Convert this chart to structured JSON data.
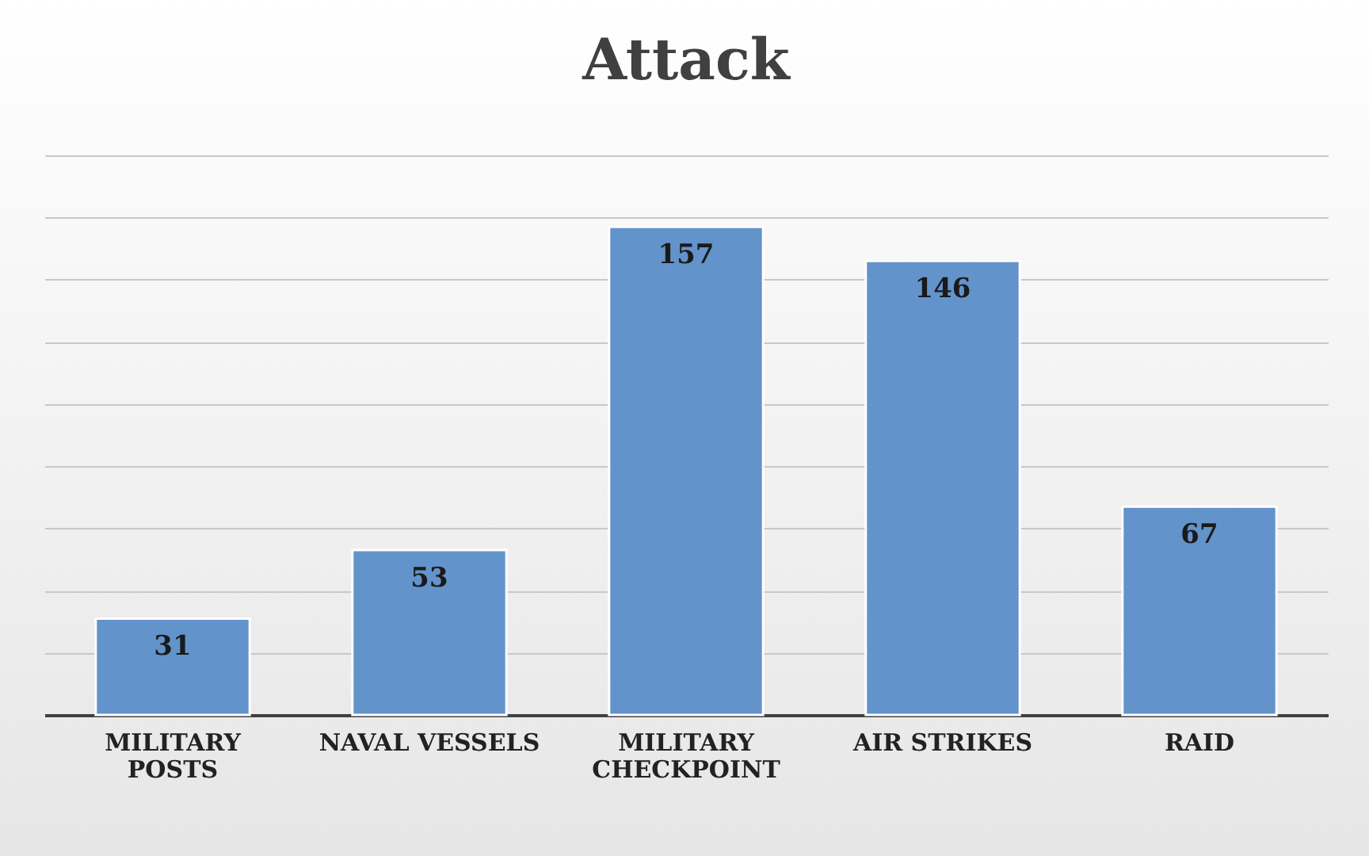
{
  "chart_data": {
    "type": "bar",
    "title": "Attack",
    "categories": [
      "MILITARY POSTS",
      "NAVAL VESSELS",
      "MILITARY CHECKPOINT",
      "AIR STRIKES",
      "RAID"
    ],
    "values": [
      31,
      53,
      157,
      146,
      67
    ],
    "color": "#6393cb",
    "ylim": [
      0,
      180
    ],
    "yticks": [
      {
        "value": 0,
        "label": null
      },
      {
        "value": 20,
        "label": null
      },
      {
        "value": 40,
        "label": null
      },
      {
        "value": 60,
        "label": null
      },
      {
        "value": 80,
        "label": null
      },
      {
        "value": 100,
        "label": null
      },
      {
        "value": 120,
        "label": null
      },
      {
        "value": 140,
        "label": null
      },
      {
        "value": 160,
        "label": null
      },
      {
        "value": 180,
        "label": null
      }
    ],
    "grid": true,
    "tick_labels": "x",
    "data_labels": true
  }
}
